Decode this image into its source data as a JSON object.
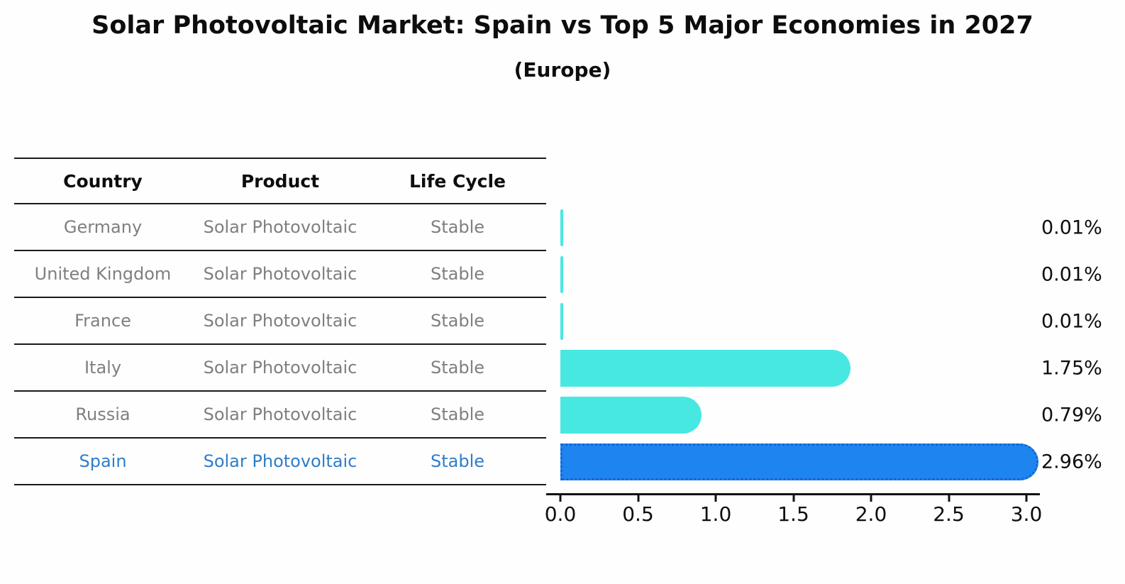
{
  "title": "Solar Photovoltaic Market: Spain vs Top 5 Major Economies in 2027",
  "subtitle": "(Europe)",
  "table": {
    "headers": [
      "Country",
      "Product",
      "Life Cycle"
    ],
    "rows": [
      {
        "country": "Germany",
        "product": "Solar Photovoltaic",
        "life_cycle": "Stable",
        "highlight": false
      },
      {
        "country": "United Kingdom",
        "product": "Solar Photovoltaic",
        "life_cycle": "Stable",
        "highlight": false
      },
      {
        "country": "France",
        "product": "Solar Photovoltaic",
        "life_cycle": "Stable",
        "highlight": false
      },
      {
        "country": "Italy",
        "product": "Solar Photovoltaic",
        "life_cycle": "Stable",
        "highlight": false
      },
      {
        "country": "Russia",
        "product": "Solar Photovoltaic",
        "life_cycle": "Stable",
        "highlight": false
      },
      {
        "country": "Spain",
        "product": "Solar Photovoltaic",
        "life_cycle": "Stable",
        "highlight": true
      }
    ]
  },
  "chart_data": {
    "type": "bar",
    "orientation": "horizontal",
    "title": "Solar Photovoltaic Market: Spain vs Top 5 Major Economies in 2027 (Europe)",
    "categories": [
      "Germany",
      "United Kingdom",
      "France",
      "Italy",
      "Russia",
      "Spain"
    ],
    "values": [
      0.01,
      0.01,
      0.01,
      1.75,
      0.79,
      2.96
    ],
    "bar_labels": [
      "0.01%",
      "0.01%",
      "0.01%",
      "1.75%",
      "0.79%",
      "2.96%"
    ],
    "highlight_index": 5,
    "x_ticks": [
      0.0,
      0.5,
      1.0,
      1.5,
      2.0,
      2.5,
      3.0
    ],
    "x_tick_labels": [
      "0.0",
      "0.5",
      "1.0",
      "1.5",
      "2.0",
      "2.5",
      "3.0"
    ],
    "xlim": [
      0.0,
      3.1
    ],
    "xlabel": "",
    "ylabel": "",
    "grid": false,
    "legend": "none",
    "colors": {
      "default_bar": "#48E8E2",
      "highlight_bar": "#1E84F0",
      "highlight_bar_border": "#1565D2",
      "highlight_text": "#2F7EC7",
      "row_text": "#7F7F7F",
      "axis_text": "#0D0D0D"
    }
  }
}
